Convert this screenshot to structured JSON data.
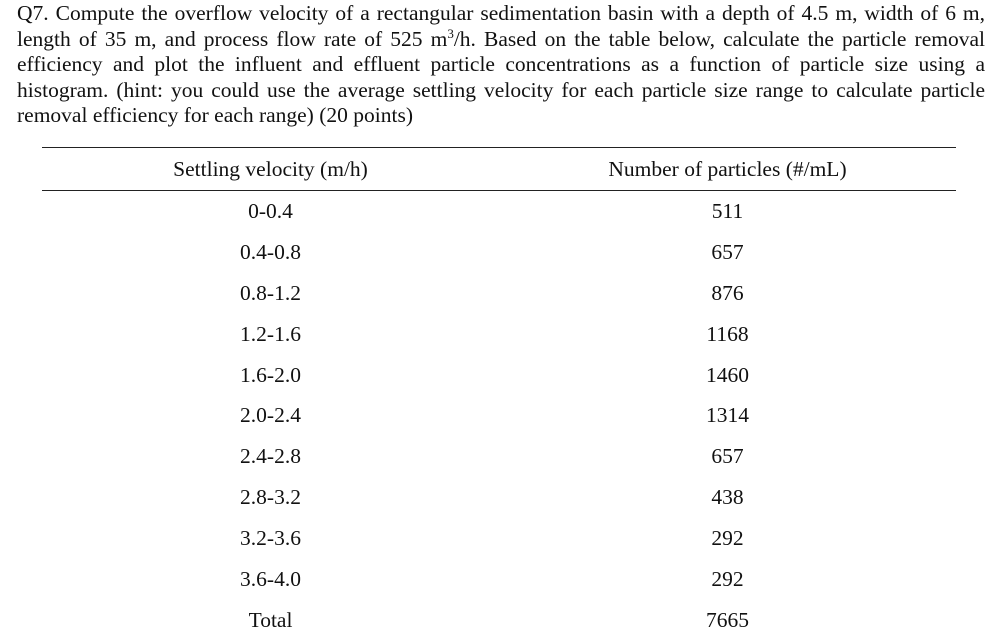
{
  "question": {
    "before_sup": "Q7. Compute the overflow velocity of a rectangular sedimentation basin with a depth of 4.5 m, width of 6 m, length of 35 m, and process flow rate of 525 m",
    "sup": "3",
    "after_sup": "/h. Based on the table below, calculate the particle removal efficiency and plot the influent and effluent particle concentrations as a function of particle size using a histogram. (hint: you could use the average settling velocity for each particle size range to calculate particle removal efficiency for each range) (20 points)"
  },
  "table": {
    "headers": [
      "Settling velocity (m/h)",
      "Number of particles (#/mL)"
    ],
    "rows": [
      [
        "0-0.4",
        "511"
      ],
      [
        "0.4-0.8",
        "657"
      ],
      [
        "0.8-1.2",
        "876"
      ],
      [
        "1.2-1.6",
        "1168"
      ],
      [
        "1.6-2.0",
        "1460"
      ],
      [
        "2.0-2.4",
        "1314"
      ],
      [
        "2.4-2.8",
        "657"
      ],
      [
        "2.8-3.2",
        "438"
      ],
      [
        "3.2-3.6",
        "292"
      ],
      [
        "3.6-4.0",
        "292"
      ],
      [
        "Total",
        "7665"
      ]
    ]
  }
}
